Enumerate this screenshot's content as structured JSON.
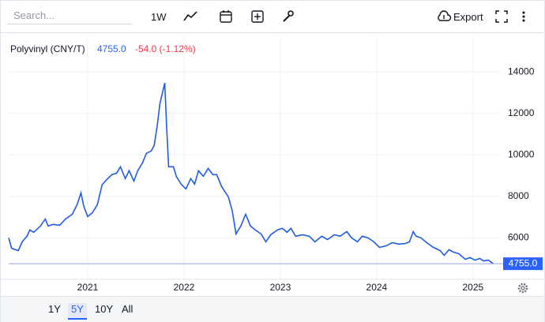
{
  "toolbar": {
    "search": "Search...",
    "interval": "1W",
    "export": "Export"
  },
  "ranges": [
    "1Y",
    "5Y",
    "10Y",
    "All"
  ],
  "selected_range": 1,
  "chart_data": {
    "type": "line",
    "change": "-54.0 (-1.12%)",
    "last": {
      "value": 4755,
      "label": "4755.0"
    },
    "x": [
      2020.18,
      2020.21,
      2020.28,
      2020.32,
      2020.37,
      2020.4,
      2020.44,
      2020.51,
      2020.56,
      2020.59,
      2020.64,
      2020.71,
      2020.77,
      2020.84,
      2020.89,
      2020.93,
      2020.96,
      2021.0,
      2021.05,
      2021.1,
      2021.15,
      2021.2,
      2021.25,
      2021.3,
      2021.34,
      2021.39,
      2021.43,
      2021.48,
      2021.52,
      2021.57,
      2021.61,
      2021.66,
      2021.69,
      2021.72,
      2021.75,
      2021.8,
      2021.82,
      2021.84,
      2021.89,
      2021.92,
      2021.97,
      2022.02,
      2022.07,
      2022.11,
      2022.15,
      2022.2,
      2022.25,
      2022.3,
      2022.34,
      2022.39,
      2022.46,
      2022.5,
      2022.54,
      2022.59,
      2022.64,
      2022.69,
      2022.74,
      2022.8,
      2022.85,
      2022.9,
      2022.97,
      2023.02,
      2023.07,
      2023.11,
      2023.16,
      2023.23,
      2023.3,
      2023.36,
      2023.43,
      2023.49,
      2023.56,
      2023.62,
      2023.69,
      2023.74,
      2023.8,
      2023.85,
      2023.91,
      2023.97,
      2024.03,
      2024.1,
      2024.16,
      2024.23,
      2024.3,
      2024.34,
      2024.38,
      2024.41,
      2024.46,
      2024.52,
      2024.59,
      2024.66,
      2024.7,
      2024.75,
      2024.8,
      2024.85,
      2024.92,
      2024.97,
      2025.02,
      2025.07,
      2025.11,
      2025.16,
      2025.21
    ],
    "series": [
      {
        "name": "Polyvinyl (CNY/T)",
        "color": "#1f5ce0",
        "values": [
          6000,
          5500,
          5390,
          5810,
          6080,
          6380,
          6270,
          6570,
          6910,
          6570,
          6650,
          6610,
          6910,
          7140,
          7600,
          8170,
          7520,
          7030,
          7220,
          7600,
          8560,
          8820,
          9050,
          9120,
          9430,
          8860,
          9240,
          8740,
          9240,
          9620,
          10080,
          10190,
          10460,
          11330,
          12480,
          13470,
          11330,
          9430,
          9430,
          8970,
          8590,
          8360,
          8860,
          8590,
          9240,
          8970,
          9350,
          9050,
          9050,
          8480,
          7980,
          7330,
          6190,
          6570,
          7140,
          6570,
          6380,
          6190,
          5810,
          6150,
          6380,
          6460,
          6270,
          6460,
          6080,
          6150,
          6080,
          5810,
          6080,
          5920,
          6150,
          6080,
          6300,
          6000,
          5810,
          6080,
          6000,
          5810,
          5540,
          5620,
          5770,
          5700,
          5730,
          5810,
          6300,
          6080,
          6000,
          5770,
          5540,
          5390,
          5160,
          5430,
          5310,
          5240,
          4970,
          5050,
          4930,
          5010,
          4890,
          4930,
          4755
        ]
      }
    ],
    "xlim": [
      2020.18,
      2025.28
    ],
    "xticks": [
      2021,
      2022,
      2023,
      2024,
      2025
    ],
    "ylim": [
      4000,
      14500
    ],
    "yticks": [
      6000,
      8000,
      10000,
      12000,
      14000
    ],
    "grid": true
  }
}
